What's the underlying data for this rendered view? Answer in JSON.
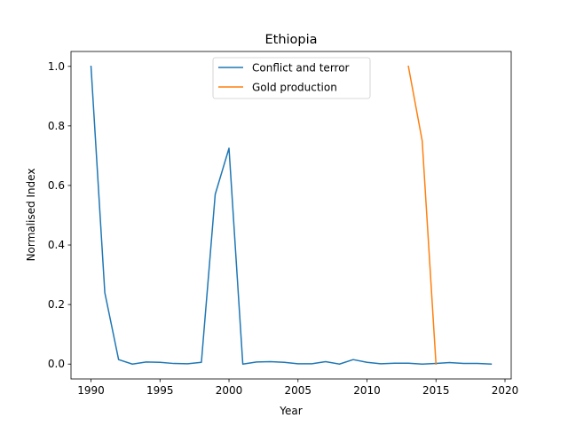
{
  "chart_data": {
    "type": "line",
    "title": "Ethiopia",
    "xlabel": "Year",
    "ylabel": "Normalised Index",
    "xlim": [
      1988.55,
      2020.45
    ],
    "ylim": [
      -0.05,
      1.05
    ],
    "xticks": [
      1990,
      1995,
      2000,
      2005,
      2010,
      2015,
      2020
    ],
    "yticks": [
      0.0,
      0.2,
      0.4,
      0.6,
      0.8,
      1.0
    ],
    "xtick_labels": [
      "1990",
      "1995",
      "2000",
      "2005",
      "2010",
      "2015",
      "2020"
    ],
    "ytick_labels": [
      "0.0",
      "0.2",
      "0.4",
      "0.6",
      "0.8",
      "1.0"
    ],
    "grid": false,
    "legend_position": "top-center",
    "series": [
      {
        "name": "Conflict and terror",
        "color": "#1f77b4",
        "x": [
          1990,
          1991,
          1992,
          1993,
          1994,
          1995,
          1996,
          1997,
          1998,
          1999,
          2000,
          2001,
          2002,
          2003,
          2004,
          2005,
          2006,
          2007,
          2008,
          2009,
          2010,
          2011,
          2012,
          2013,
          2014,
          2015,
          2016,
          2017,
          2018,
          2019
        ],
        "y": [
          1.0,
          0.24,
          0.015,
          0.0,
          0.007,
          0.006,
          0.002,
          0.001,
          0.006,
          0.57,
          0.725,
          0.0,
          0.007,
          0.008,
          0.006,
          0.001,
          0.001,
          0.008,
          0.0,
          0.015,
          0.006,
          0.001,
          0.003,
          0.003,
          0.0,
          0.002,
          0.005,
          0.002,
          0.002,
          0.0
        ]
      },
      {
        "name": "Gold production",
        "color": "#ff7f0e",
        "x": [
          2013,
          2014,
          2015
        ],
        "y": [
          1.0,
          0.75,
          0.0
        ]
      }
    ]
  }
}
